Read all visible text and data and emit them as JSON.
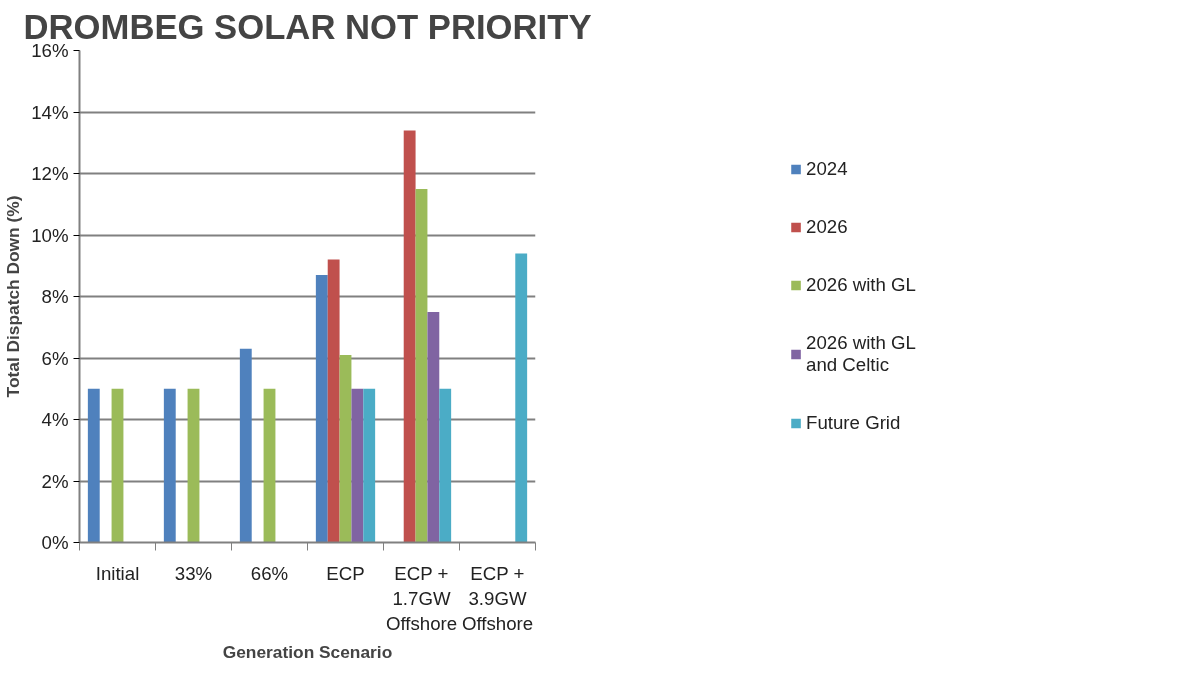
{
  "chart_data": {
    "type": "bar",
    "title": "DROMBEG SOLAR NOT PRIORITY",
    "xlabel": "Generation Scenario",
    "ylabel": "Total Dispatch Down (%)",
    "categories": [
      "Initial",
      "33%",
      "66%",
      "ECP",
      "ECP + 1.7GW Offshore",
      "ECP + 3.9GW Offshore"
    ],
    "series": [
      {
        "name": "2024",
        "color": "#4f81bd",
        "values": [
          5.0,
          5.0,
          6.3,
          8.7,
          null,
          null
        ]
      },
      {
        "name": "2026",
        "color": "#c0504d",
        "values": [
          null,
          null,
          null,
          9.2,
          13.4,
          null
        ]
      },
      {
        "name": "2026 with GL",
        "color": "#9bbb59",
        "values": [
          5.0,
          5.0,
          5.0,
          6.1,
          11.5,
          null
        ]
      },
      {
        "name": "2026 with GL and Celtic",
        "color": "#8064a2",
        "values": [
          null,
          null,
          null,
          5.0,
          7.5,
          null
        ]
      },
      {
        "name": "Future Grid",
        "color": "#4bacc6",
        "values": [
          null,
          null,
          null,
          5.0,
          5.0,
          9.4
        ]
      }
    ],
    "ylim": [
      0,
      16
    ],
    "yticks": [
      {
        "value": 0,
        "label": "0%"
      },
      {
        "value": 2,
        "label": "2%"
      },
      {
        "value": 4,
        "label": "4%"
      },
      {
        "value": 6,
        "label": "6%"
      },
      {
        "value": 8,
        "label": "8%"
      },
      {
        "value": 10,
        "label": "10%"
      },
      {
        "value": 12,
        "label": "12%"
      },
      {
        "value": 14,
        "label": "14%"
      },
      {
        "value": 16,
        "label": "16%"
      }
    ],
    "grid": "y",
    "legend": "right"
  }
}
